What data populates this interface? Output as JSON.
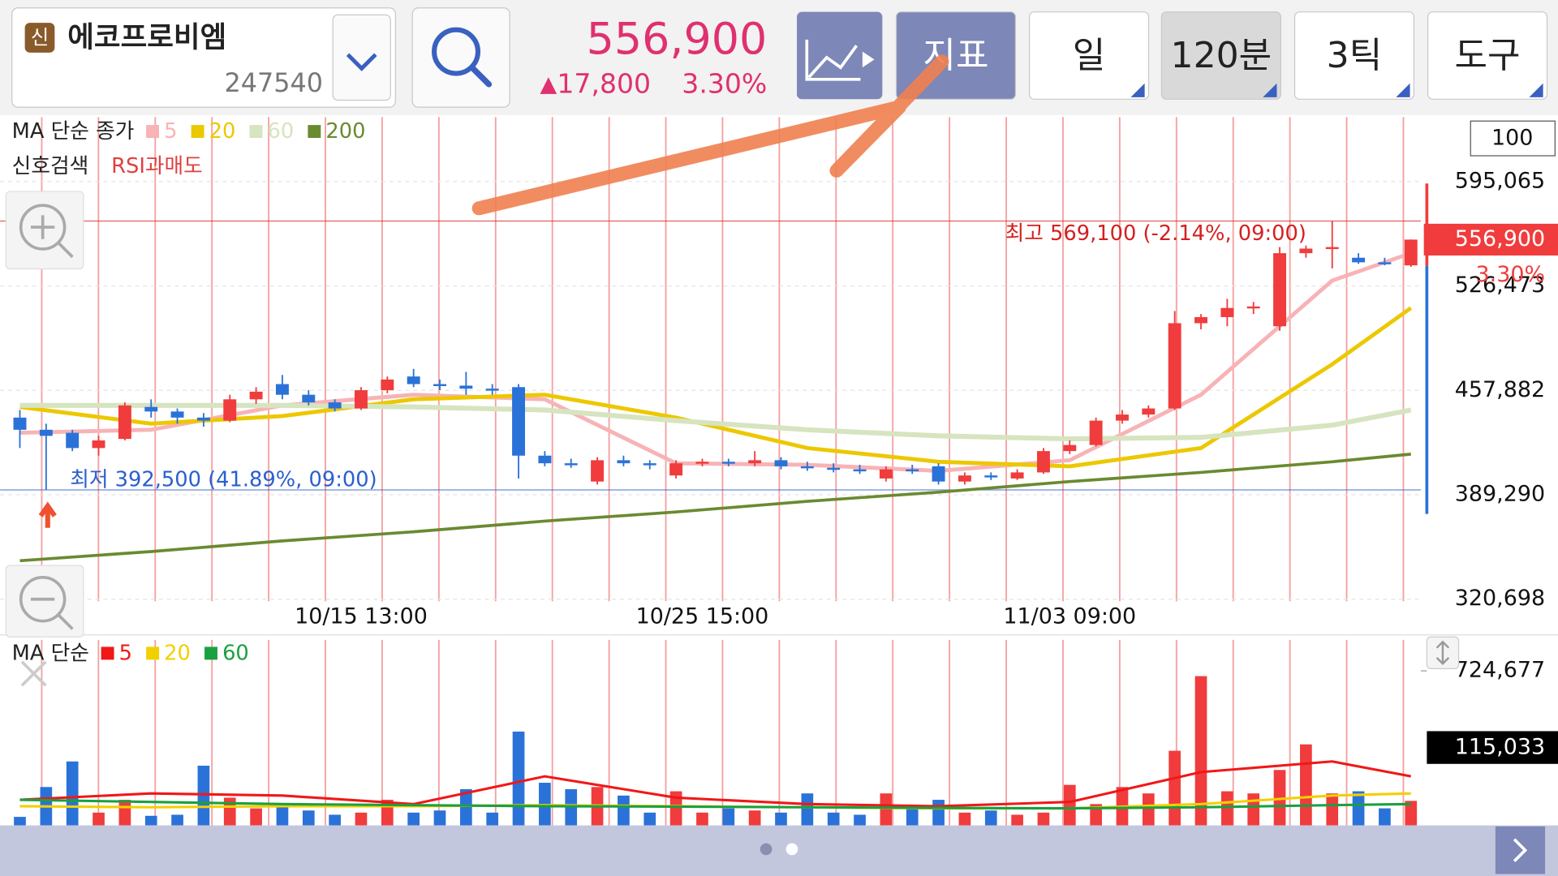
{
  "header": {
    "badge": "신",
    "name": "에코프로비엠",
    "code": "247540",
    "price": "556,900",
    "change_arrow": "▲",
    "change": "17,800",
    "change_pct": "3.30%"
  },
  "toolbar": [
    "지표",
    "일",
    "120분",
    "3틱",
    "도구"
  ],
  "signal": {
    "label": "신호검색",
    "value": "RSI과매도"
  },
  "scale_box": "100",
  "chart_data": [
    {
      "type": "candlestick",
      "legend_title": "MA 단순 종가",
      "categories": [
        null,
        null,
        null,
        null,
        null,
        null,
        null,
        null,
        null,
        null,
        null,
        null,
        null,
        "10/15 13:00",
        null,
        null,
        null,
        null,
        null,
        null,
        null,
        null,
        null,
        null,
        null,
        null,
        "10/25 15:00",
        null,
        null,
        null,
        null,
        null,
        null,
        null,
        null,
        null,
        null,
        null,
        null,
        null,
        "11/03 09:00",
        null,
        null,
        null,
        null,
        null,
        null,
        null,
        null,
        null,
        null,
        null,
        null,
        null
      ],
      "open": [
        440000,
        432000,
        430000,
        420000,
        426000,
        447000,
        444000,
        440000,
        438000,
        452000,
        462000,
        455000,
        450000,
        446000,
        458000,
        467000,
        462000,
        461000,
        459000,
        460000,
        415000,
        410000,
        398000,
        412000,
        410000,
        402000,
        410000,
        411000,
        410000,
        412000,
        408000,
        407000,
        406000,
        400000,
        406000,
        408000,
        398000,
        402000,
        400000,
        404000,
        418000,
        422000,
        438000,
        442000,
        446000,
        502000,
        506000,
        512000,
        500000,
        548000,
        551000,
        545000,
        542000,
        540000
      ],
      "high": [
        445000,
        436000,
        432000,
        428000,
        450000,
        452000,
        446000,
        443000,
        455000,
        460000,
        468000,
        458000,
        452000,
        460000,
        467000,
        472000,
        465000,
        470000,
        462000,
        462000,
        418000,
        413000,
        414000,
        415000,
        412000,
        412000,
        413000,
        413000,
        418000,
        414000,
        411000,
        410000,
        409000,
        408000,
        409000,
        410000,
        404000,
        404000,
        406000,
        420000,
        425000,
        440000,
        445000,
        448000,
        510000,
        508000,
        518000,
        516000,
        552000,
        553000,
        569100,
        548000,
        545000,
        557000
      ],
      "low": [
        420000,
        392500,
        418000,
        415000,
        425000,
        440000,
        436000,
        434000,
        437000,
        449000,
        452000,
        448000,
        444000,
        445000,
        456000,
        460000,
        458000,
        455000,
        455000,
        400000,
        408000,
        407000,
        396000,
        408000,
        406000,
        400000,
        408000,
        408000,
        408000,
        406000,
        405000,
        404000,
        403000,
        398000,
        403000,
        396000,
        396000,
        399000,
        399000,
        403000,
        416000,
        421000,
        436000,
        440000,
        445000,
        498000,
        500000,
        508000,
        497000,
        545000,
        538000,
        541000,
        540000,
        539000
      ],
      "close": [
        432000,
        428000,
        420000,
        425000,
        448000,
        444000,
        440000,
        438000,
        452000,
        457000,
        455000,
        450000,
        446000,
        458000,
        465000,
        462000,
        461000,
        459000,
        458000,
        415000,
        410000,
        409000,
        412000,
        410000,
        409000,
        410000,
        411000,
        410000,
        412000,
        408000,
        407000,
        406000,
        405000,
        406000,
        405000,
        398000,
        402000,
        401000,
        404000,
        418000,
        422000,
        438000,
        442000,
        446000,
        502000,
        506000,
        512000,
        513000,
        548000,
        551000,
        552000,
        542000,
        541000,
        556900
      ],
      "up_color": "#f03c3c",
      "down_color": "#2a72d8",
      "series": [
        {
          "name": "5",
          "color": "#f7b3b6",
          "x": [
            0,
            5,
            10,
            15,
            20,
            25,
            30,
            35,
            40,
            45,
            50,
            53
          ],
          "values": [
            430000,
            432000,
            448000,
            455000,
            452000,
            410000,
            409000,
            405000,
            412000,
            455000,
            530000,
            548000
          ]
        },
        {
          "name": "20",
          "color": "#ecc800",
          "x": [
            0,
            5,
            10,
            15,
            20,
            25,
            30,
            35,
            40,
            45,
            50,
            53
          ],
          "values": [
            447000,
            436000,
            441000,
            452000,
            455000,
            440000,
            420000,
            411000,
            408000,
            420000,
            475000,
            512000
          ]
        },
        {
          "name": "60",
          "color": "#d6e4c0",
          "x": [
            0,
            5,
            10,
            15,
            20,
            25,
            30,
            35,
            40,
            45,
            50,
            53
          ],
          "values": [
            448000,
            448000,
            448000,
            447000,
            445000,
            438000,
            432000,
            428000,
            426000,
            427000,
            435000,
            445000
          ]
        },
        {
          "name": "200",
          "color": "#6a8a30",
          "x": [
            0,
            5,
            10,
            15,
            20,
            25,
            30,
            35,
            40,
            45,
            50,
            53
          ],
          "values": [
            346000,
            352000,
            359000,
            365000,
            372000,
            378000,
            385000,
            391000,
            398000,
            404000,
            411000,
            416000
          ]
        }
      ],
      "ylim": [
        319400,
        637400
      ],
      "yticks": [
        {
          "value": 320698,
          "label": "320,698"
        },
        {
          "value": 389290,
          "label": "389,290"
        },
        {
          "value": 457882,
          "label": "457,882"
        },
        {
          "value": 526473,
          "label": "526,473"
        },
        {
          "value": 595065,
          "label": "595,065"
        }
      ],
      "grid": true,
      "annotations": [
        {
          "text": "최고 569,100 (-2.14%, 09:00)",
          "value": 569100,
          "color": "#d42020"
        },
        {
          "text": "최저 392,500 (41.89%, 09:00)",
          "value": 392500,
          "color": "#2a5fd0"
        }
      ]
    },
    {
      "type": "bar",
      "legend_title": "MA 단순",
      "values": [
        40000,
        180000,
        300000,
        60000,
        120000,
        45000,
        50000,
        280000,
        130000,
        80000,
        90000,
        70000,
        50000,
        60000,
        120000,
        60000,
        70000,
        170000,
        60000,
        440000,
        200000,
        170000,
        180000,
        140000,
        60000,
        160000,
        60000,
        80000,
        70000,
        60000,
        150000,
        60000,
        50000,
        150000,
        80000,
        120000,
        60000,
        70000,
        50000,
        60000,
        190000,
        100000,
        180000,
        150000,
        350000,
        700000,
        160000,
        150000,
        260000,
        380000,
        150000,
        160000,
        80000,
        115033
      ],
      "series": [
        {
          "name": "5",
          "color": "#f01818",
          "x": [
            0,
            5,
            10,
            15,
            20,
            25,
            30,
            35,
            40,
            45,
            50,
            53
          ],
          "values": [
            120000,
            150000,
            140000,
            100000,
            230000,
            130000,
            100000,
            90000,
            110000,
            250000,
            300000,
            230000
          ]
        },
        {
          "name": "20",
          "color": "#f2d000",
          "x": [
            0,
            5,
            10,
            15,
            20,
            25,
            30,
            35,
            40,
            45,
            50,
            53
          ],
          "values": [
            90000,
            85000,
            90000,
            90000,
            95000,
            90000,
            85000,
            80000,
            80000,
            100000,
            140000,
            150000
          ]
        },
        {
          "name": "60",
          "color": "#1aa040",
          "x": [
            0,
            5,
            10,
            15,
            20,
            25,
            30,
            35,
            40,
            45,
            50,
            53
          ],
          "values": [
            120000,
            110000,
            100000,
            95000,
            90000,
            88000,
            85000,
            82000,
            80000,
            85000,
            95000,
            100000
          ]
        }
      ],
      "ylim": [
        0,
        870000
      ],
      "yticks": [
        {
          "value": 724677,
          "label": "724,677"
        }
      ],
      "current_label": "115,033"
    }
  ]
}
